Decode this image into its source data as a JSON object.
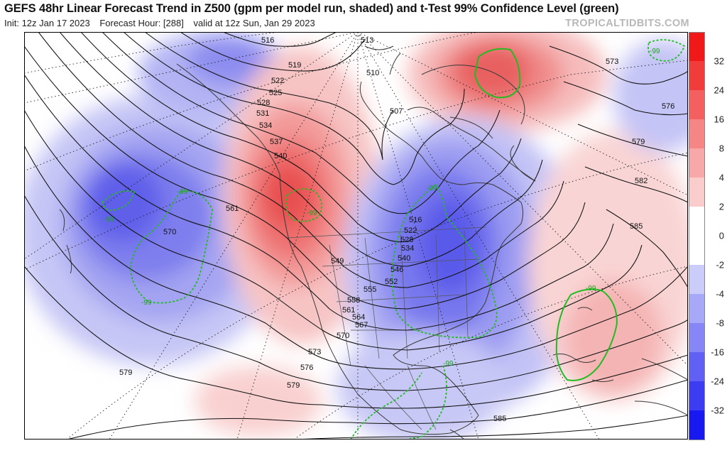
{
  "title": "GEFS 48hr Linear Forecast Trend in Z500 (gpm per model run, shaded) and t-Test 99% Confidence Level (green)",
  "subtitle": {
    "init": "Init: 12z Jan 17 2023",
    "forecast_hour": "Forecast Hour: [288]",
    "valid": "valid at 12z Sun, Jan 29 2023"
  },
  "watermark": "TROPICALTIDBITS.COM",
  "colors": {
    "positive_strong": "#e03030",
    "positive_light": "#f8c8c8",
    "negative_strong": "#3030e8",
    "negative_light": "#c8c8f8",
    "significance": "#22bb22"
  },
  "colorbar": {
    "labels": [
      "32",
      "24",
      "16",
      "8",
      "4",
      "2",
      "0",
      "-2",
      "-4",
      "-8",
      "-16",
      "-24",
      "-32"
    ],
    "colors": [
      "#f01818",
      "#f23c3c",
      "#f46060",
      "#f68686",
      "#f8a8a8",
      "#fbcccc",
      "#ffffff",
      "#ffffff",
      "#ccccfb",
      "#a8a8f8",
      "#8686f6",
      "#6060f4",
      "#3c3cf2",
      "#1818f0"
    ]
  },
  "contour_labels": [
    "516",
    "513",
    "519",
    "510",
    "522",
    "525",
    "528",
    "507",
    "531",
    "534",
    "537",
    "540",
    "561",
    "570",
    "549",
    "555",
    "552",
    "558",
    "561",
    "564",
    "567",
    "570",
    "573",
    "576",
    "579",
    "579",
    "516",
    "522",
    "528",
    "534",
    "540",
    "546",
    "573",
    "576",
    "579",
    "582",
    "585",
    "585"
  ],
  "ttest_labels": [
    "-99",
    "-99",
    "-99",
    "-99",
    "-99",
    "-99",
    "-99",
    "-99"
  ]
}
